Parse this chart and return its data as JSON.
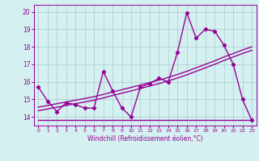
{
  "x": [
    0,
    1,
    2,
    3,
    4,
    5,
    6,
    7,
    8,
    9,
    10,
    11,
    12,
    13,
    14,
    15,
    16,
    17,
    18,
    19,
    20,
    21,
    22,
    23
  ],
  "y_main": [
    15.7,
    14.9,
    14.3,
    14.8,
    14.7,
    14.5,
    14.5,
    16.6,
    15.5,
    14.5,
    14.0,
    15.7,
    15.9,
    16.2,
    16.0,
    17.7,
    19.95,
    18.5,
    19.0,
    18.9,
    18.1,
    17.0,
    15.0,
    13.8
  ],
  "y_reg1": [
    14.55,
    14.65,
    14.75,
    14.85,
    14.95,
    15.05,
    15.15,
    15.28,
    15.42,
    15.55,
    15.68,
    15.82,
    15.96,
    16.1,
    16.25,
    16.42,
    16.6,
    16.8,
    17.0,
    17.2,
    17.42,
    17.62,
    17.82,
    18.0
  ],
  "y_reg2": [
    14.35,
    14.45,
    14.55,
    14.65,
    14.75,
    14.85,
    14.95,
    15.08,
    15.22,
    15.35,
    15.48,
    15.62,
    15.76,
    15.9,
    16.05,
    16.22,
    16.4,
    16.6,
    16.8,
    17.0,
    17.22,
    17.42,
    17.62,
    17.8
  ],
  "y_flat": [
    13.8,
    13.8,
    13.8,
    13.8,
    13.8,
    13.8,
    13.8,
    13.8,
    13.8,
    13.8,
    13.8,
    13.8,
    13.8,
    13.8,
    13.8,
    13.8,
    13.8,
    13.8,
    13.8,
    13.8,
    13.8,
    13.8,
    13.8,
    13.8
  ],
  "line_color": "#990099",
  "bg_color": "#d4f0f0",
  "grid_color": "#aacccc",
  "xlabel": "Windchill (Refroidissement éolien,°C)",
  "ylim": [
    13.5,
    20.4
  ],
  "xlim": [
    -0.5,
    23.5
  ],
  "yticks": [
    14,
    15,
    16,
    17,
    18,
    19,
    20
  ],
  "xticks": [
    0,
    1,
    2,
    3,
    4,
    5,
    6,
    7,
    8,
    9,
    10,
    11,
    12,
    13,
    14,
    15,
    16,
    17,
    18,
    19,
    20,
    21,
    22,
    23
  ],
  "marker": "D",
  "marker_size": 2.2,
  "line_width": 1.0
}
